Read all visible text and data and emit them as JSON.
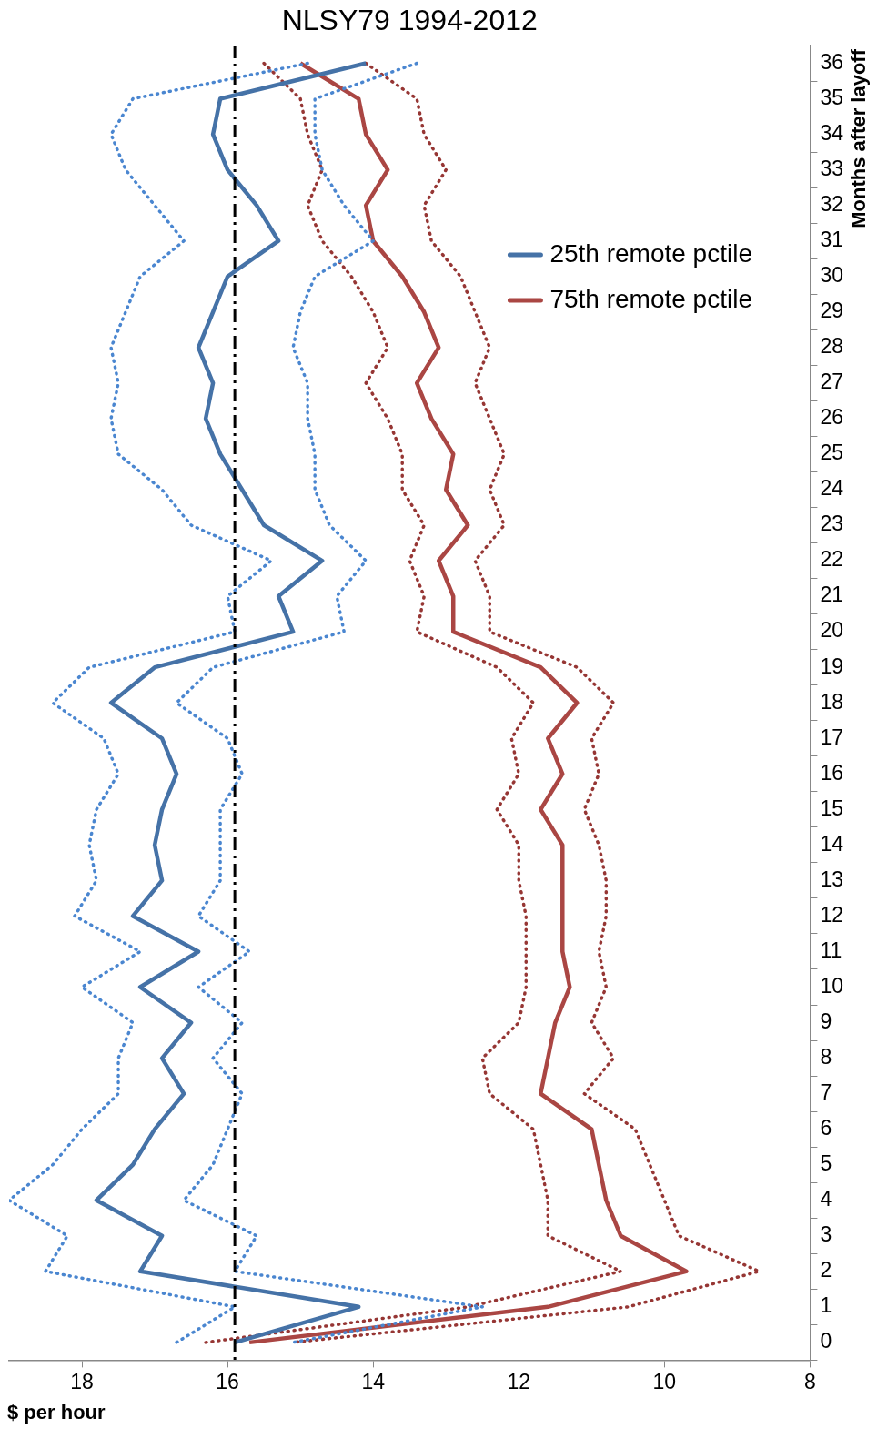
{
  "chart_data": {
    "type": "line",
    "orientation": "horizontal",
    "title": "NLSY79 1994-2012",
    "xlabel": "$ per hour",
    "ylabel": "Months after layoff",
    "categories": [
      "36",
      "35",
      "34",
      "33",
      "32",
      "31",
      "30",
      "29",
      "28",
      "27",
      "26",
      "25",
      "24",
      "23",
      "22",
      "21",
      "20",
      "19",
      "18",
      "17",
      "16",
      "15",
      "14",
      "13",
      "12",
      "11",
      "10",
      "9",
      "8",
      "7",
      "6",
      "5",
      "4",
      "3",
      "2",
      "1",
      "0"
    ],
    "series": [
      {
        "name": "25th remote pctile",
        "color": "#4572a7",
        "values": [
          14.1,
          16.1,
          16.2,
          16.0,
          15.6,
          15.3,
          16.0,
          16.2,
          16.4,
          16.2,
          16.3,
          16.1,
          15.8,
          15.5,
          14.7,
          15.3,
          15.1,
          17.0,
          17.6,
          16.9,
          16.7,
          16.9,
          17.0,
          16.9,
          17.3,
          16.4,
          17.2,
          16.5,
          16.9,
          16.6,
          17.0,
          17.3,
          17.8,
          16.9,
          17.2,
          14.2,
          15.9
        ]
      },
      {
        "color": "#4a86d0",
        "line_style": "dotted",
        "values": [
          14.9,
          17.3,
          17.6,
          17.4,
          17.0,
          16.6,
          17.2,
          17.4,
          17.6,
          17.5,
          17.6,
          17.5,
          16.9,
          16.5,
          15.4,
          16.0,
          15.9,
          17.9,
          18.4,
          17.7,
          17.5,
          17.8,
          17.9,
          17.8,
          18.1,
          17.2,
          18.0,
          17.3,
          17.5,
          17.5,
          18.0,
          18.4,
          19.0,
          18.2,
          18.5,
          15.9,
          16.7
        ]
      },
      {
        "color": "#4a86d0",
        "line_style": "dotted",
        "values": [
          13.4,
          14.8,
          14.8,
          14.7,
          14.4,
          14.0,
          14.8,
          15.0,
          15.1,
          14.9,
          14.9,
          14.8,
          14.8,
          14.6,
          14.1,
          14.5,
          14.4,
          16.2,
          16.7,
          16.0,
          15.8,
          16.1,
          16.1,
          16.1,
          16.4,
          15.7,
          16.4,
          15.8,
          16.2,
          15.8,
          16.0,
          16.2,
          16.6,
          15.6,
          15.9,
          12.5,
          15.1
        ]
      },
      {
        "name": "75th remote pctile",
        "color": "#aa4643",
        "values": [
          15.0,
          14.2,
          14.1,
          13.8,
          14.1,
          14.0,
          13.6,
          13.3,
          13.1,
          13.4,
          13.2,
          12.9,
          13.0,
          12.7,
          13.1,
          12.9,
          12.9,
          11.7,
          11.2,
          11.6,
          11.4,
          11.7,
          11.4,
          11.4,
          11.4,
          11.4,
          11.3,
          11.5,
          11.6,
          11.7,
          11.0,
          10.9,
          10.8,
          10.6,
          9.7,
          11.6,
          15.7
        ]
      },
      {
        "color": "#963634",
        "line_style": "dotted",
        "values": [
          15.5,
          15.0,
          14.9,
          14.7,
          14.9,
          14.7,
          14.3,
          14.0,
          13.8,
          14.1,
          13.8,
          13.6,
          13.6,
          13.3,
          13.5,
          13.3,
          13.4,
          12.3,
          11.8,
          12.1,
          12.0,
          12.3,
          12.0,
          12.0,
          11.9,
          11.9,
          11.9,
          12.0,
          12.5,
          12.4,
          11.8,
          11.7,
          11.6,
          11.6,
          10.6,
          12.7,
          16.3
        ]
      },
      {
        "color": "#963634",
        "line_style": "dotted",
        "values": [
          14.1,
          13.4,
          13.3,
          13.0,
          13.3,
          13.2,
          12.8,
          12.6,
          12.4,
          12.6,
          12.4,
          12.2,
          12.4,
          12.2,
          12.6,
          12.4,
          12.4,
          11.2,
          10.7,
          11.0,
          10.9,
          11.1,
          10.9,
          10.8,
          10.8,
          10.9,
          10.8,
          11.0,
          10.7,
          11.1,
          10.4,
          10.2,
          10.0,
          9.8,
          8.7,
          10.5,
          15.1
        ]
      }
    ],
    "xlim": [
      19,
      8
    ],
    "xticks": [
      8,
      10,
      12,
      14,
      16,
      18
    ],
    "ref_lines": [
      {
        "axis": "x",
        "value": 15.9,
        "color": "#000000",
        "line_style": "dashed"
      }
    ],
    "grid": false,
    "legend": "top right",
    "marker": "none",
    "line_style": "solid"
  }
}
